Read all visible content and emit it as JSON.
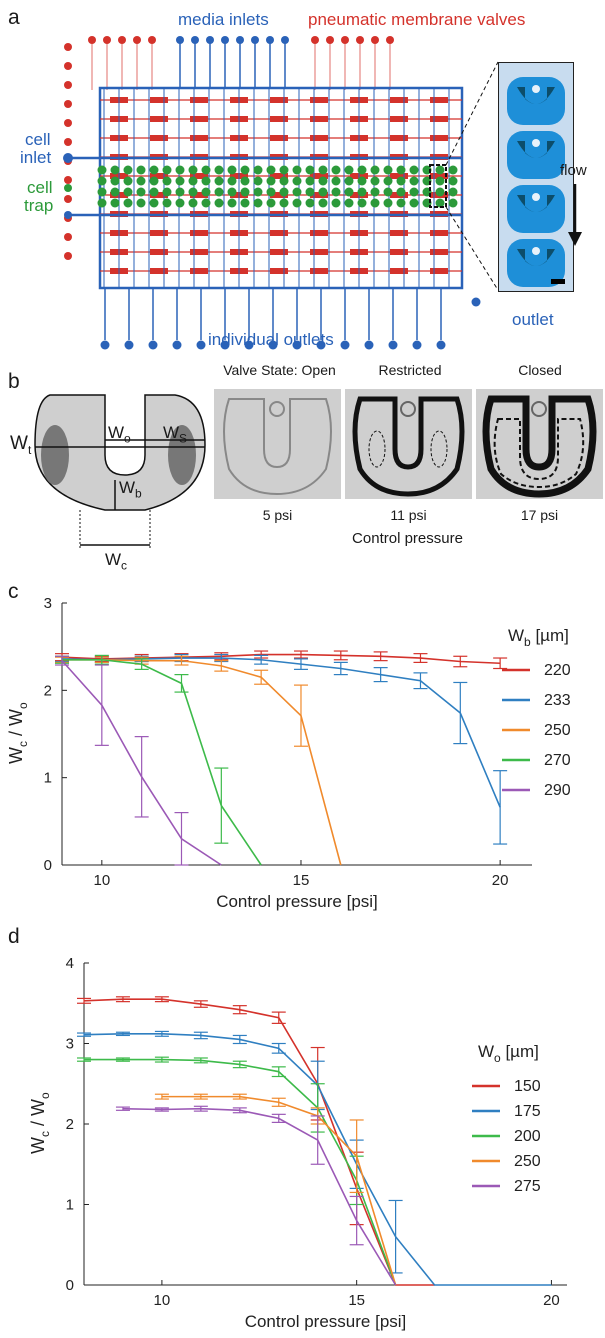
{
  "panel_a": {
    "label": "a",
    "media_inlets": "media inlets",
    "valves": "pneumatic membrane valves",
    "cell_inlet_1": "cell",
    "cell_inlet_2": "inlet",
    "cell_trap_1": "cell",
    "cell_trap_2": "trap",
    "flow": "flow",
    "outlet": "outlet",
    "individual_outlets": "individual outlets",
    "colors": {
      "blue": "#2a62b8",
      "red": "#d4322b",
      "green": "#2c9a3a"
    }
  },
  "panel_b": {
    "label": "b",
    "wo": "W",
    "wo_sub": "o",
    "ws": "W",
    "ws_sub": "S",
    "wt": "W",
    "wt_sub": "t",
    "wb": "W",
    "wb_sub": "b",
    "wc": "W",
    "wc_sub": "c",
    "state_open": "Valve State: Open",
    "state_restricted": "Restricted",
    "state_closed": "Closed",
    "p1": "5 psi",
    "p2": "11 psi",
    "p3": "17 psi",
    "control_pressure": "Control pressure"
  },
  "chart_data": [
    {
      "panel": "c",
      "type": "line",
      "xlabel": "Control pressure [psi]",
      "ylabel_main": "W",
      "ylabel_sub1": "c",
      "ylabel_mid": " / W",
      "ylabel_sub2": "o",
      "xlim": [
        9,
        20.8
      ],
      "ylim": [
        0,
        3
      ],
      "xticks": [
        10,
        15,
        20
      ],
      "yticks": [
        0,
        1,
        2,
        3
      ],
      "legend_title": "W",
      "legend_title_sub": "b",
      "legend_title_unit": " [µm]",
      "series": [
        {
          "name": "220",
          "color": "#d4322b",
          "x": [
            9,
            10,
            11,
            12,
            13,
            14,
            15,
            16,
            17,
            18,
            19,
            20
          ],
          "y": [
            2.38,
            2.36,
            2.37,
            2.38,
            2.39,
            2.41,
            2.41,
            2.4,
            2.39,
            2.37,
            2.33,
            2.31
          ],
          "err": [
            0.04,
            0.03,
            0.04,
            0.04,
            0.04,
            0.04,
            0.04,
            0.05,
            0.05,
            0.05,
            0.06,
            0.06
          ]
        },
        {
          "name": "233",
          "color": "#2f7fc1",
          "x": [
            9,
            10,
            11,
            12,
            13,
            14,
            15,
            16,
            17,
            18,
            19,
            20
          ],
          "y": [
            2.36,
            2.35,
            2.36,
            2.37,
            2.37,
            2.35,
            2.3,
            2.25,
            2.18,
            2.11,
            1.74,
            0.66
          ],
          "err": [
            0.03,
            0.03,
            0.03,
            0.04,
            0.04,
            0.05,
            0.06,
            0.07,
            0.08,
            0.09,
            0.35,
            0.42
          ]
        },
        {
          "name": "250",
          "color": "#f08a2c",
          "x": [
            9,
            10,
            11,
            12,
            13,
            14,
            15,
            16
          ],
          "y": [
            2.35,
            2.35,
            2.34,
            2.34,
            2.28,
            2.15,
            1.71,
            0
          ],
          "err": [
            0.03,
            0.03,
            0.04,
            0.05,
            0.06,
            0.08,
            0.35,
            0
          ]
        },
        {
          "name": "270",
          "color": "#3dba4a",
          "x": [
            9,
            10,
            11,
            12,
            13,
            14
          ],
          "y": [
            2.35,
            2.35,
            2.3,
            2.08,
            0.68,
            0
          ],
          "err": [
            0.04,
            0.05,
            0.06,
            0.1,
            0.43,
            0
          ]
        },
        {
          "name": "290",
          "color": "#9b59b6",
          "x": [
            9,
            10,
            11,
            12,
            13
          ],
          "y": [
            2.34,
            1.83,
            1.01,
            0.3,
            0
          ],
          "err": [
            0.05,
            0.46,
            0.46,
            0.3,
            0
          ]
        }
      ]
    },
    {
      "panel": "d",
      "type": "line",
      "xlabel": "Control pressure [psi]",
      "ylabel_main": "W",
      "ylabel_sub1": "c",
      "ylabel_mid": " / W",
      "ylabel_sub2": "o",
      "xlim": [
        8,
        20.4
      ],
      "ylim": [
        0,
        4
      ],
      "xticks": [
        10,
        15,
        20
      ],
      "yticks": [
        0,
        1,
        2,
        3,
        4
      ],
      "legend_title": "W",
      "legend_title_sub": "o",
      "legend_title_unit": "  [µm]",
      "series": [
        {
          "name": "150",
          "color": "#d4322b",
          "x": [
            8,
            9,
            10,
            11,
            12,
            13,
            14,
            15,
            16,
            17
          ],
          "y": [
            3.53,
            3.55,
            3.55,
            3.49,
            3.42,
            3.32,
            2.5,
            1.2,
            0,
            0
          ],
          "err": [
            0.03,
            0.03,
            0.03,
            0.04,
            0.05,
            0.07,
            0.45,
            0.45,
            0,
            0
          ]
        },
        {
          "name": "175",
          "color": "#2f7fc1",
          "x": [
            8,
            9,
            10,
            11,
            12,
            13,
            14,
            15,
            16,
            17,
            20
          ],
          "y": [
            3.11,
            3.12,
            3.12,
            3.1,
            3.05,
            2.94,
            2.48,
            1.5,
            0.6,
            0,
            0
          ],
          "err": [
            0.02,
            0.02,
            0.03,
            0.04,
            0.05,
            0.06,
            0.3,
            0.3,
            0.45,
            0,
            0
          ]
        },
        {
          "name": "200",
          "color": "#3dba4a",
          "x": [
            8,
            9,
            10,
            11,
            12,
            13,
            14,
            15,
            16
          ],
          "y": [
            2.8,
            2.8,
            2.8,
            2.79,
            2.74,
            2.65,
            2.2,
            1.3,
            0
          ],
          "err": [
            0.02,
            0.02,
            0.03,
            0.03,
            0.04,
            0.06,
            0.3,
            0.3,
            0
          ]
        },
        {
          "name": "250",
          "color": "#f08a2c",
          "x": [
            10,
            11,
            12,
            13,
            14,
            15,
            16
          ],
          "y": [
            2.34,
            2.34,
            2.34,
            2.27,
            2.1,
            1.6,
            0
          ],
          "err": [
            0.03,
            0.03,
            0.03,
            0.05,
            0.1,
            0.45,
            0
          ]
        },
        {
          "name": "275",
          "color": "#9b59b6",
          "x": [
            9,
            10,
            11,
            12,
            13,
            14,
            15,
            16
          ],
          "y": [
            2.19,
            2.18,
            2.19,
            2.17,
            2.07,
            1.8,
            0.8,
            0
          ],
          "err": [
            0.02,
            0.02,
            0.03,
            0.03,
            0.05,
            0.3,
            0.3,
            0
          ]
        }
      ]
    }
  ]
}
